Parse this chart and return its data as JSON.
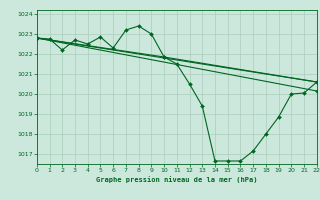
{
  "title": "Graphe pression niveau de la mer (hPa)",
  "background_color": "#cce8dd",
  "grid_color": "#aaccbb",
  "line_color": "#006620",
  "xlim": [
    0,
    22
  ],
  "ylim": [
    1016.5,
    1024.2
  ],
  "xticks": [
    0,
    1,
    2,
    3,
    4,
    5,
    6,
    7,
    8,
    9,
    10,
    11,
    12,
    13,
    14,
    15,
    16,
    17,
    18,
    19,
    20,
    21,
    22
  ],
  "yticks": [
    1017,
    1018,
    1019,
    1020,
    1021,
    1022,
    1023,
    1024
  ],
  "series1_x": [
    0,
    1,
    2,
    3,
    4,
    5,
    6,
    7,
    8,
    9,
    10,
    11,
    12,
    13,
    14,
    15,
    16,
    17,
    18,
    19,
    20,
    21,
    22
  ],
  "series1_y": [
    1022.8,
    1022.75,
    1022.2,
    1022.7,
    1022.5,
    1022.85,
    1022.3,
    1023.2,
    1023.4,
    1023.0,
    1021.85,
    1021.5,
    1020.5,
    1019.4,
    1016.65,
    1016.65,
    1016.65,
    1017.15,
    1018.0,
    1018.85,
    1020.0,
    1020.05,
    1020.6
  ],
  "series2_x": [
    0,
    22
  ],
  "series2_y": [
    1022.8,
    1020.6
  ],
  "series3_x": [
    0,
    22
  ],
  "series3_y": [
    1022.8,
    1020.15
  ],
  "series4_x": [
    0,
    10,
    22
  ],
  "series4_y": [
    1022.8,
    1021.85,
    1020.6
  ]
}
